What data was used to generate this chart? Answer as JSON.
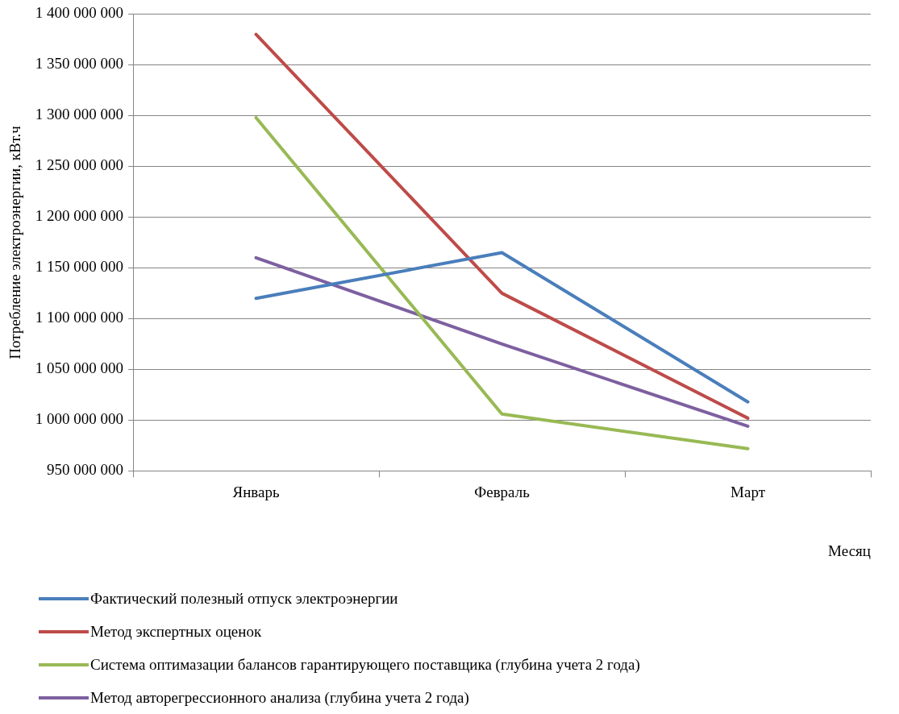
{
  "chart_data": {
    "type": "line",
    "xlabel": "Месяц",
    "ylabel": "Потребление электроэнергии, кВт.ч",
    "categories": [
      "Январь",
      "Февраль",
      "Март"
    ],
    "series": [
      {
        "name": "Фактический полезный отпуск электроэнергии",
        "color": "#4a7ebb",
        "values": [
          1120000000,
          1165000000,
          1018000000
        ]
      },
      {
        "name": "Метод экспертных оценок",
        "color": "#be4b48",
        "values": [
          1380000000,
          1125000000,
          1002000000
        ]
      },
      {
        "name": "Система оптимазации балансов гарантирующего поставщика (глубина учета 2 года)",
        "color": "#98b954",
        "values": [
          1298000000,
          1006000000,
          972000000
        ]
      },
      {
        "name": "Метод авторегрессионного анализа (глубина учета 2 года)",
        "color": "#7d60a0",
        "values": [
          1160000000,
          1075000000,
          994000000
        ]
      }
    ],
    "ylim": [
      950000000,
      1400000000
    ],
    "yticks": [
      {
        "value": 950000000,
        "label": "950 000 000"
      },
      {
        "value": 1000000000,
        "label": "1 000 000 000"
      },
      {
        "value": 1050000000,
        "label": "1 050 000 000"
      },
      {
        "value": 1100000000,
        "label": "1 100 000 000"
      },
      {
        "value": 1150000000,
        "label": "1 150 000 000"
      },
      {
        "value": 1200000000,
        "label": "1 200 000 000"
      },
      {
        "value": 1250000000,
        "label": "1 250 000 000"
      },
      {
        "value": 1300000000,
        "label": "1 300 000 000"
      },
      {
        "value": 1350000000,
        "label": "1 350 000 000"
      },
      {
        "value": 1400000000,
        "label": "1 400 000 000"
      }
    ],
    "grid": "y",
    "legend": "bottom",
    "marker": "none",
    "line_style": "solid"
  }
}
